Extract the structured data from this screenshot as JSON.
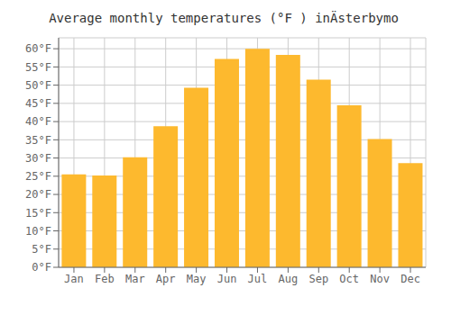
{
  "chart_data": {
    "type": "bar",
    "title": "Average monthly temperatures (°F ) inÄsterbymo",
    "categories": [
      "Jan",
      "Feb",
      "Mar",
      "Apr",
      "May",
      "Jun",
      "Jul",
      "Aug",
      "Sep",
      "Oct",
      "Nov",
      "Dec"
    ],
    "values": [
      25.5,
      25.2,
      30.2,
      38.7,
      49.3,
      57.2,
      60.0,
      58.3,
      51.5,
      44.5,
      35.2,
      28.6
    ],
    "color": "#FDB92E",
    "ylim": [
      0,
      63
    ],
    "yticks": [
      {
        "value": 0,
        "label": "0°F"
      },
      {
        "value": 5,
        "label": "5°F"
      },
      {
        "value": 10,
        "label": "10°F"
      },
      {
        "value": 15,
        "label": "15°F"
      },
      {
        "value": 20,
        "label": "20°F"
      },
      {
        "value": 25,
        "label": "25°F"
      },
      {
        "value": 30,
        "label": "30°F"
      },
      {
        "value": 35,
        "label": "35°F"
      },
      {
        "value": 40,
        "label": "40°F"
      },
      {
        "value": 45,
        "label": "45°F"
      },
      {
        "value": 50,
        "label": "50°F"
      },
      {
        "value": 55,
        "label": "55°F"
      },
      {
        "value": 60,
        "label": "60°F"
      }
    ],
    "grid": true
  }
}
